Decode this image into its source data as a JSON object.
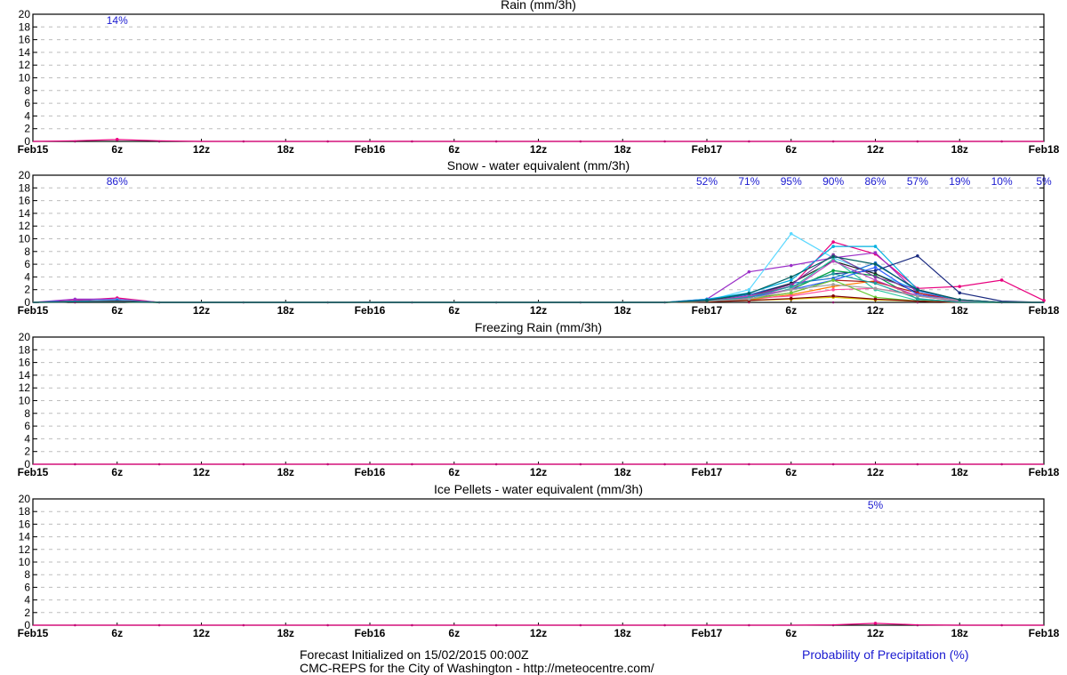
{
  "x_ticks": [
    "Feb15",
    "6z",
    "12z",
    "18z",
    "Feb16",
    "6z",
    "12z",
    "18z",
    "Feb17",
    "6z",
    "12z",
    "18z",
    "Feb18"
  ],
  "y_ticks": [
    0,
    2,
    4,
    6,
    8,
    10,
    12,
    14,
    16,
    18,
    20
  ],
  "footer": {
    "line1": "Forecast Initialized on 15/02/2015 00:00Z",
    "line2": "CMC-REPS for the City of Washington - http://meteocentre.com/",
    "legend": "Probability of Precipitation (%)"
  },
  "colors": {
    "axis": "#000000",
    "grid": "#bdbdbd",
    "probability_text": "#1a1ad0",
    "members": [
      "#e8007e",
      "#9b30c8",
      "#5ad8ff",
      "#00b0e0",
      "#1a6fd6",
      "#1a2a80",
      "#202020",
      "#00a040",
      "#2cc8a0",
      "#d8c800",
      "#ff7a00",
      "#b01a1a",
      "#7a3aa0",
      "#ff4fa0",
      "#3060ff",
      "#66cc33",
      "#c040c0",
      "#800000",
      "#20a0a0",
      "#a0a0a0",
      "#006060"
    ]
  },
  "chart_data": [
    {
      "type": "line",
      "title": "Rain (mm/3h)",
      "x_unit": "hours since 15/02/2015 00Z",
      "ylim": [
        0,
        20
      ],
      "grid": true,
      "probabilities": [
        {
          "x": 6,
          "label": "14%"
        }
      ],
      "series": [
        {
          "x": [
            0,
            3,
            6,
            9,
            12,
            15,
            18,
            21,
            24,
            27,
            30,
            33,
            36,
            39,
            42,
            45,
            48,
            51,
            54,
            57,
            60,
            63,
            66,
            69,
            72
          ],
          "values": [
            0,
            0.1,
            0.3,
            0.1,
            0,
            0,
            0,
            0,
            0,
            0,
            0,
            0,
            0,
            0,
            0,
            0,
            0,
            0,
            0,
            0,
            0,
            0,
            0,
            0,
            0
          ]
        }
      ]
    },
    {
      "type": "line",
      "title": "Snow - water equivalent (mm/3h)",
      "x_unit": "hours since 15/02/2015 00Z",
      "ylim": [
        0,
        20
      ],
      "grid": true,
      "probabilities": [
        {
          "x": 6,
          "label": "86%"
        },
        {
          "x": 48,
          "label": "52%"
        },
        {
          "x": 51,
          "label": "71%"
        },
        {
          "x": 54,
          "label": "95%"
        },
        {
          "x": 57,
          "label": "90%"
        },
        {
          "x": 60,
          "label": "86%"
        },
        {
          "x": 63,
          "label": "57%"
        },
        {
          "x": 66,
          "label": "19%"
        },
        {
          "x": 69,
          "label": "10%"
        },
        {
          "x": 72,
          "label": "5%"
        }
      ],
      "series": [
        {
          "x": [
            0,
            3,
            6,
            9,
            45,
            48,
            51,
            54,
            57,
            60,
            63,
            66,
            69,
            72
          ],
          "values": [
            0,
            0.3,
            0.7,
            0,
            0,
            0.2,
            1,
            2.5,
            9.5,
            7.6,
            2.2,
            2.5,
            3.5,
            0.3
          ]
        },
        {
          "x": [
            0,
            3,
            6,
            9,
            45,
            48,
            51,
            54,
            57,
            60,
            63,
            66,
            69,
            72
          ],
          "values": [
            0,
            0.5,
            0.5,
            0,
            0,
            0.5,
            4.8,
            5.8,
            7,
            7.8,
            1.5,
            0.4,
            0,
            0
          ]
        },
        {
          "x": [
            0,
            3,
            6,
            9,
            45,
            48,
            51,
            54,
            57,
            60,
            63,
            66,
            69,
            72
          ],
          "values": [
            0,
            0.2,
            0.4,
            0,
            0,
            0.3,
            2,
            10.8,
            7,
            4.5,
            2,
            0.2,
            0,
            0
          ]
        },
        {
          "x": [
            0,
            3,
            6,
            9,
            45,
            48,
            51,
            54,
            57,
            60,
            63,
            66,
            69,
            72
          ],
          "values": [
            0,
            0.2,
            0.3,
            0,
            0,
            0.5,
            1.5,
            3.5,
            8.8,
            8.8,
            2,
            0.2,
            0,
            0
          ]
        },
        {
          "x": [
            0,
            3,
            6,
            9,
            45,
            48,
            51,
            54,
            57,
            60,
            63,
            66,
            69,
            72
          ],
          "values": [
            0,
            0.2,
            0.3,
            0,
            0,
            0.4,
            1.2,
            3,
            3.8,
            6.2,
            1.8,
            0.4,
            0,
            0
          ]
        },
        {
          "x": [
            0,
            3,
            6,
            9,
            45,
            48,
            51,
            54,
            57,
            60,
            63,
            66,
            69,
            72
          ],
          "values": [
            0,
            0.1,
            0.2,
            0,
            0,
            0.2,
            0.8,
            2.5,
            4.5,
            5,
            7.3,
            1.5,
            0.2,
            0
          ]
        },
        {
          "x": [
            0,
            3,
            6,
            9,
            45,
            48,
            51,
            54,
            57,
            60,
            63,
            66,
            69,
            72
          ],
          "values": [
            0,
            0.1,
            0.2,
            0,
            0,
            0.3,
            1,
            3,
            6.5,
            4.5,
            1.5,
            0.2,
            0,
            0
          ]
        },
        {
          "x": [
            0,
            3,
            6,
            9,
            45,
            48,
            51,
            54,
            57,
            60,
            63,
            66,
            69,
            72
          ],
          "values": [
            0,
            0.1,
            0.2,
            0,
            0,
            0.2,
            0.8,
            2,
            5,
            4.2,
            0.5,
            0.1,
            0,
            0
          ]
        },
        {
          "x": [
            0,
            3,
            6,
            9,
            45,
            48,
            51,
            54,
            57,
            60,
            63,
            66,
            69,
            72
          ],
          "values": [
            0,
            0.1,
            0.2,
            0,
            0,
            0.1,
            0.5,
            2.2,
            6.8,
            2,
            0.3,
            0,
            0,
            0
          ]
        },
        {
          "x": [
            0,
            3,
            6,
            9,
            45,
            48,
            51,
            54,
            57,
            60,
            63,
            66,
            69,
            72
          ],
          "values": [
            0,
            0.1,
            0.1,
            0,
            0,
            0.1,
            0.3,
            0.5,
            0.8,
            0.4,
            0.2,
            0,
            0,
            0
          ]
        },
        {
          "x": [
            0,
            3,
            6,
            9,
            45,
            48,
            51,
            54,
            57,
            60,
            63,
            66,
            69,
            72
          ],
          "values": [
            0,
            0.1,
            0.1,
            0,
            0,
            0.1,
            0.4,
            1.2,
            2.5,
            3.4,
            1,
            0.2,
            0,
            0
          ]
        },
        {
          "x": [
            0,
            3,
            6,
            9,
            45,
            48,
            51,
            54,
            57,
            60,
            63,
            66,
            69,
            72
          ],
          "values": [
            0,
            0.1,
            0.2,
            0,
            0,
            0.2,
            0.6,
            1.5,
            3.5,
            3.2,
            1.5,
            0.2,
            0,
            0
          ]
        },
        {
          "x": [
            0,
            3,
            6,
            9,
            45,
            48,
            51,
            54,
            57,
            60,
            63,
            66,
            69,
            72
          ],
          "values": [
            0,
            0.1,
            0.2,
            0,
            0,
            0.2,
            1,
            2.8,
            7.5,
            4,
            2,
            0.4,
            0,
            0
          ]
        },
        {
          "x": [
            0,
            3,
            6,
            9,
            45,
            48,
            51,
            54,
            57,
            60,
            63,
            66,
            69,
            72
          ],
          "values": [
            0,
            0.1,
            0.2,
            0,
            0,
            0.2,
            0.6,
            1,
            2,
            2.2,
            1.2,
            0.3,
            0,
            0
          ]
        },
        {
          "x": [
            0,
            3,
            6,
            9,
            45,
            48,
            51,
            54,
            57,
            60,
            63,
            66,
            69,
            72
          ],
          "values": [
            0,
            0.1,
            0.2,
            0,
            0,
            0.2,
            0.8,
            2,
            3.5,
            5.5,
            1.2,
            0.2,
            0,
            0
          ]
        },
        {
          "x": [
            0,
            3,
            6,
            9,
            45,
            48,
            51,
            54,
            57,
            60,
            63,
            66,
            69,
            72
          ],
          "values": [
            0,
            0.1,
            0.1,
            0,
            0,
            0.1,
            0.5,
            1.5,
            3.5,
            0.8,
            0.2,
            0,
            0,
            0
          ]
        },
        {
          "x": [
            0,
            3,
            6,
            9,
            45,
            48,
            51,
            54,
            57,
            60,
            63,
            66,
            69,
            72
          ],
          "values": [
            0,
            0.1,
            0.2,
            0,
            0,
            0.2,
            1,
            2,
            6.5,
            3.5,
            1,
            0.2,
            0,
            0
          ]
        },
        {
          "x": [
            0,
            3,
            6,
            9,
            45,
            48,
            51,
            54,
            57,
            60,
            63,
            66,
            69,
            72
          ],
          "values": [
            0,
            0.1,
            0.2,
            0,
            0,
            0.1,
            0.3,
            0.6,
            1,
            0.5,
            0.2,
            0,
            0,
            0
          ]
        },
        {
          "x": [
            0,
            3,
            6,
            9,
            45,
            48,
            51,
            54,
            57,
            60,
            63,
            66,
            69,
            72
          ],
          "values": [
            0,
            0.1,
            0.1,
            0,
            0,
            0.2,
            0.8,
            2.5,
            4.5,
            3,
            0.6,
            0,
            0,
            0
          ]
        },
        {
          "x": [
            0,
            3,
            6,
            9,
            45,
            48,
            51,
            54,
            57,
            60,
            63,
            66,
            69,
            72
          ],
          "values": [
            0,
            0.1,
            0.1,
            0,
            0,
            0.2,
            0.5,
            2,
            2.8,
            2.2,
            1,
            0.3,
            0,
            0
          ]
        },
        {
          "x": [
            0,
            3,
            6,
            9,
            45,
            48,
            51,
            54,
            57,
            60,
            63,
            66,
            69,
            72
          ],
          "values": [
            0,
            0.1,
            0.1,
            0,
            0,
            0.3,
            1.4,
            4,
            7.2,
            6,
            2,
            0.4,
            0,
            0
          ]
        }
      ]
    },
    {
      "type": "line",
      "title": "Freezing Rain (mm/3h)",
      "x_unit": "hours since 15/02/2015 00Z",
      "ylim": [
        0,
        20
      ],
      "grid": true,
      "probabilities": [],
      "series": [
        {
          "x": [
            0,
            3,
            6,
            9,
            12,
            15,
            18,
            21,
            24,
            27,
            30,
            33,
            36,
            39,
            42,
            45,
            48,
            51,
            54,
            57,
            60,
            63,
            66,
            69,
            72
          ],
          "values": [
            0,
            0,
            0,
            0,
            0,
            0,
            0,
            0,
            0,
            0,
            0,
            0,
            0,
            0,
            0,
            0,
            0,
            0,
            0,
            0,
            0,
            0,
            0,
            0,
            0
          ]
        }
      ]
    },
    {
      "type": "line",
      "title": "Ice Pellets - water equivalent (mm/3h)",
      "x_unit": "hours since 15/02/2015 00Z",
      "ylim": [
        0,
        20
      ],
      "grid": true,
      "probabilities": [
        {
          "x": 60,
          "label": "5%"
        }
      ],
      "series": [
        {
          "x": [
            0,
            3,
            6,
            9,
            12,
            15,
            18,
            21,
            24,
            27,
            30,
            33,
            36,
            39,
            42,
            45,
            48,
            51,
            54,
            57,
            60,
            63,
            66,
            69,
            72
          ],
          "values": [
            0,
            0,
            0,
            0,
            0,
            0,
            0,
            0,
            0,
            0,
            0,
            0,
            0,
            0,
            0,
            0,
            0,
            0,
            0,
            0.05,
            0.3,
            0.05,
            0,
            0,
            0
          ]
        }
      ]
    }
  ]
}
